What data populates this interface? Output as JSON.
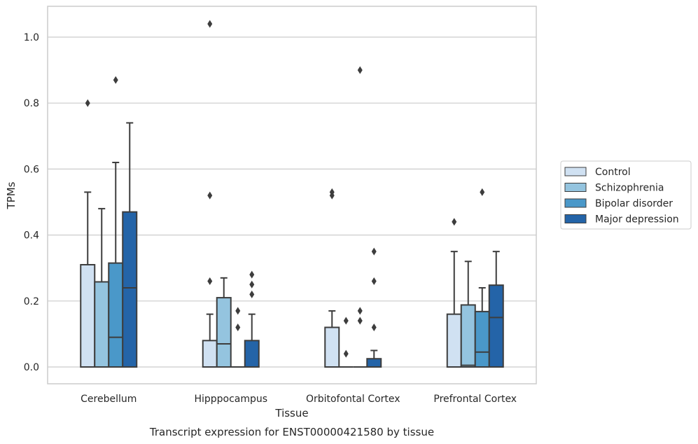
{
  "chart_data": {
    "type": "box",
    "title": "",
    "xlabel": "Tissue",
    "ylabel": "TPMs",
    "caption": "Transcript expression for ENST00000421580 by tissue",
    "ylim": [
      -0.05,
      1.09
    ],
    "yticks": [
      "0.0",
      "0.2",
      "0.4",
      "0.6",
      "0.8",
      "1.0"
    ],
    "grid": true,
    "legend_position": "right",
    "categories": [
      "Cerebellum",
      "Hipppocampus",
      "Orbitofontal Cortex",
      "Prefrontal Cortex"
    ],
    "series": [
      {
        "name": "Control",
        "color": "#d0e1f2",
        "boxes": [
          {
            "q1": 0,
            "median": 0,
            "q3": 0.31,
            "whisker_low": 0,
            "whisker_high": 0.53,
            "outliers": [
              0.8
            ]
          },
          {
            "q1": 0,
            "median": 0,
            "q3": 0.08,
            "whisker_low": 0,
            "whisker_high": 0.16,
            "outliers": [
              0.26,
              0.52,
              1.04
            ]
          },
          {
            "q1": 0,
            "median": 0,
            "q3": 0.12,
            "whisker_low": 0,
            "whisker_high": 0.17,
            "outliers": [
              0.52,
              0.53
            ]
          },
          {
            "q1": 0,
            "median": 0,
            "q3": 0.16,
            "whisker_low": 0,
            "whisker_high": 0.35,
            "outliers": [
              0.44
            ]
          }
        ]
      },
      {
        "name": "Schizophrenia",
        "color": "#94c4df",
        "boxes": [
          {
            "q1": 0,
            "median": 0,
            "q3": 0.258,
            "whisker_low": 0,
            "whisker_high": 0.48,
            "outliers": []
          },
          {
            "q1": 0,
            "median": 0.07,
            "q3": 0.21,
            "whisker_low": 0,
            "whisker_high": 0.27,
            "outliers": []
          },
          {
            "q1": 0,
            "median": 0,
            "q3": 0,
            "whisker_low": 0,
            "whisker_high": 0,
            "outliers": [
              0.04,
              0.14
            ]
          },
          {
            "q1": 0,
            "median": 0.005,
            "q3": 0.188,
            "whisker_low": 0,
            "whisker_high": 0.32,
            "outliers": []
          }
        ]
      },
      {
        "name": "Bipolar disorder",
        "color": "#4a98c9",
        "boxes": [
          {
            "q1": 0,
            "median": 0.09,
            "q3": 0.315,
            "whisker_low": 0,
            "whisker_high": 0.62,
            "outliers": [
              0.87
            ]
          },
          {
            "q1": 0,
            "median": 0,
            "q3": 0,
            "whisker_low": 0,
            "whisker_high": 0,
            "outliers": [
              0.12,
              0.17
            ]
          },
          {
            "q1": 0,
            "median": 0,
            "q3": 0,
            "whisker_low": 0,
            "whisker_high": 0,
            "outliers": [
              0.14,
              0.17,
              0.9
            ]
          },
          {
            "q1": 0,
            "median": 0.045,
            "q3": 0.168,
            "whisker_low": 0,
            "whisker_high": 0.24,
            "outliers": [
              0.53
            ]
          }
        ]
      },
      {
        "name": "Major depression",
        "color": "#2464a8",
        "boxes": [
          {
            "q1": 0,
            "median": 0.24,
            "q3": 0.47,
            "whisker_low": 0,
            "whisker_high": 0.74,
            "outliers": []
          },
          {
            "q1": 0,
            "median": 0,
            "q3": 0.08,
            "whisker_low": 0,
            "whisker_high": 0.16,
            "outliers": [
              0.22,
              0.25,
              0.28
            ]
          },
          {
            "q1": 0,
            "median": 0,
            "q3": 0.025,
            "whisker_low": 0,
            "whisker_high": 0.05,
            "outliers": [
              0.12,
              0.26,
              0.35
            ]
          },
          {
            "q1": 0,
            "median": 0.15,
            "q3": 0.248,
            "whisker_low": 0,
            "whisker_high": 0.35,
            "outliers": []
          }
        ]
      }
    ]
  }
}
